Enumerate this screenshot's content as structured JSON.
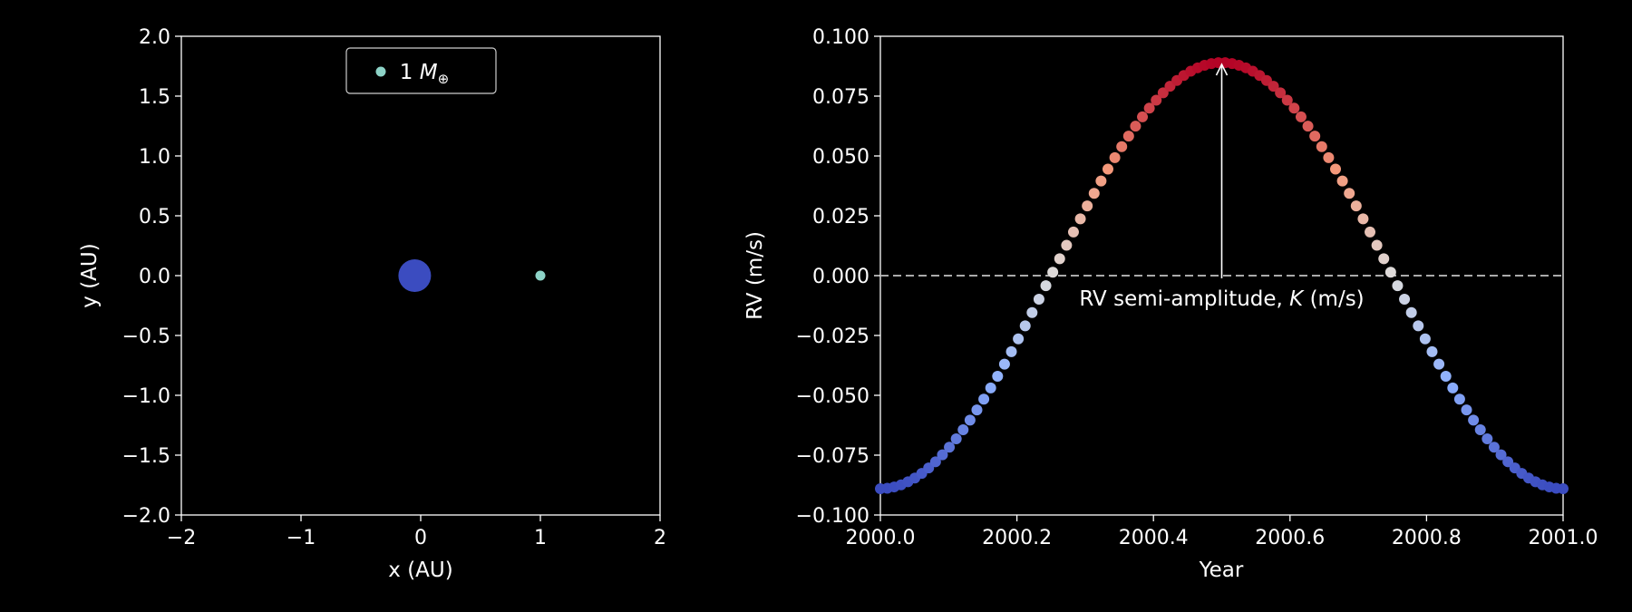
{
  "chart_data": [
    {
      "type": "scatter",
      "xlabel": "x (AU)",
      "ylabel": "y (AU)",
      "xlim": [
        -2,
        2
      ],
      "ylim": [
        -2,
        2
      ],
      "xticks": [
        "−2",
        "−1",
        "0",
        "1",
        "2"
      ],
      "yticks": [
        "2.0",
        "1.5",
        "1.0",
        "0.5",
        "0.0",
        "−0.5",
        "−1.0",
        "−1.5",
        "−2.0"
      ],
      "star": {
        "x": -0.05,
        "y": 0.0,
        "color": "#3b4cc0"
      },
      "planet": {
        "x": 1.0,
        "y": 0.0,
        "color": "#8dd3c7"
      },
      "legend": {
        "label": "1 M⊕",
        "placement": "top-center"
      },
      "grid": false
    },
    {
      "type": "scatter",
      "xlabel": "Year",
      "ylabel": "RV (m/s)",
      "xlim": [
        2000.0,
        2001.0
      ],
      "ylim": [
        -0.1,
        0.1
      ],
      "xticks": [
        "2000.0",
        "2000.2",
        "2000.4",
        "2000.6",
        "2000.8",
        "2001.0"
      ],
      "yticks": [
        "0.100",
        "0.075",
        "0.050",
        "0.025",
        "0.000",
        "−0.025",
        "−0.050",
        "−0.075",
        "−0.100"
      ],
      "series": [
        {
          "amplitude": 0.089,
          "period_years": 1.0,
          "peak_year": 2000.5,
          "start_year": 2000.0,
          "end_year": 2001.0,
          "n_points": 100,
          "colormap": "coolwarm"
        }
      ],
      "reference_line": {
        "y": 0.0,
        "style": "dashed",
        "color": "#aaaaaa"
      },
      "annotation": {
        "text": "RV semi-amplitude, K (m/s)",
        "arrow_from": [
          2000.5,
          0.0
        ],
        "arrow_to": [
          2000.5,
          0.089
        ]
      },
      "grid": false
    }
  ]
}
